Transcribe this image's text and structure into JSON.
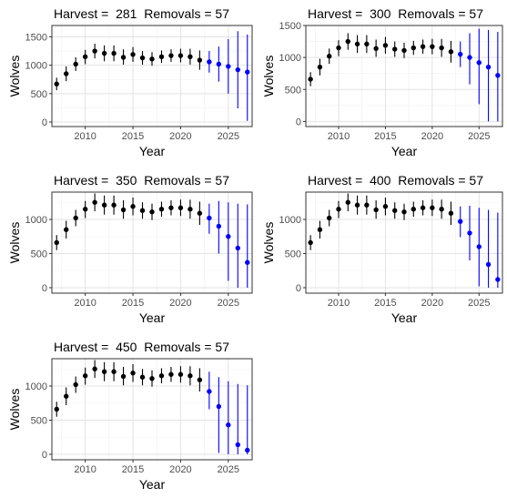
{
  "chart_data": [
    {
      "type": "scatter",
      "title": "Harvest =  281  Removals = 57",
      "xlabel": "Year",
      "ylabel": "Wolves",
      "xlim": [
        2006.5,
        2027.5
      ],
      "ylim": [
        -80,
        1700
      ],
      "xticks": [
        2010,
        2015,
        2020,
        2025
      ],
      "yticks": [
        0,
        500,
        1000,
        1500
      ],
      "grid": true,
      "colors": {
        "observed": "#000000",
        "projected": "#0000ff"
      },
      "x": [
        2007,
        2008,
        2009,
        2010,
        2011,
        2012,
        2013,
        2014,
        2015,
        2016,
        2017,
        2018,
        2019,
        2020,
        2021,
        2022,
        2023,
        2024,
        2025,
        2026,
        2027
      ],
      "y": [
        670,
        850,
        1020,
        1150,
        1250,
        1210,
        1210,
        1140,
        1190,
        1130,
        1110,
        1150,
        1170,
        1170,
        1150,
        1090,
        1060,
        1020,
        980,
        920,
        880
      ],
      "lower": [
        560,
        720,
        900,
        1020,
        1120,
        1070,
        1070,
        1010,
        1060,
        1010,
        990,
        1040,
        1060,
        1050,
        1010,
        920,
        870,
        710,
        500,
        240,
        20
      ],
      "upper": [
        780,
        980,
        1140,
        1270,
        1380,
        1350,
        1350,
        1280,
        1320,
        1250,
        1230,
        1260,
        1280,
        1290,
        1290,
        1260,
        1250,
        1330,
        1460,
        1600,
        1540
      ],
      "projected_from": 2023
    },
    {
      "type": "scatter",
      "title": "Harvest =  300  Removals = 57",
      "xlabel": "Year",
      "ylabel": "Wolves",
      "xlim": [
        2006.5,
        2027.5
      ],
      "ylim": [
        -80,
        1500
      ],
      "xticks": [
        2010,
        2015,
        2020,
        2025
      ],
      "yticks": [
        0,
        500,
        1000,
        1500
      ],
      "grid": true,
      "colors": {
        "observed": "#000000",
        "projected": "#0000ff"
      },
      "x": [
        2007,
        2008,
        2009,
        2010,
        2011,
        2012,
        2013,
        2014,
        2015,
        2016,
        2017,
        2018,
        2019,
        2020,
        2021,
        2022,
        2023,
        2024,
        2025,
        2026,
        2027
      ],
      "y": [
        660,
        850,
        1020,
        1150,
        1250,
        1210,
        1210,
        1140,
        1190,
        1130,
        1110,
        1150,
        1170,
        1170,
        1150,
        1090,
        1050,
        1000,
        920,
        850,
        720
      ],
      "lower": [
        550,
        720,
        900,
        1020,
        1120,
        1070,
        1070,
        1010,
        1060,
        1010,
        990,
        1040,
        1060,
        1050,
        1010,
        920,
        850,
        580,
        270,
        0,
        0
      ],
      "upper": [
        770,
        980,
        1140,
        1270,
        1380,
        1350,
        1350,
        1280,
        1320,
        1250,
        1230,
        1260,
        1280,
        1290,
        1290,
        1260,
        1250,
        1380,
        1450,
        1430,
        1400
      ],
      "projected_from": 2023
    },
    {
      "type": "scatter",
      "title": "Harvest =  350  Removals = 57",
      "xlabel": "Year",
      "ylabel": "Wolves",
      "xlim": [
        2006.5,
        2027.5
      ],
      "ylim": [
        -80,
        1400
      ],
      "xticks": [
        2010,
        2015,
        2020,
        2025
      ],
      "yticks": [
        0,
        500,
        1000
      ],
      "grid": true,
      "colors": {
        "observed": "#000000",
        "projected": "#0000ff"
      },
      "x": [
        2007,
        2008,
        2009,
        2010,
        2011,
        2012,
        2013,
        2014,
        2015,
        2016,
        2017,
        2018,
        2019,
        2020,
        2021,
        2022,
        2023,
        2024,
        2025,
        2026,
        2027
      ],
      "y": [
        660,
        850,
        1020,
        1150,
        1250,
        1210,
        1210,
        1140,
        1190,
        1130,
        1110,
        1150,
        1170,
        1170,
        1150,
        1090,
        1020,
        900,
        750,
        580,
        370
      ],
      "lower": [
        550,
        720,
        900,
        1020,
        1120,
        1070,
        1070,
        1010,
        1060,
        1010,
        990,
        1040,
        1060,
        1050,
        1010,
        920,
        790,
        500,
        100,
        0,
        0
      ],
      "upper": [
        770,
        980,
        1140,
        1270,
        1380,
        1350,
        1350,
        1280,
        1320,
        1250,
        1230,
        1260,
        1280,
        1290,
        1290,
        1260,
        1230,
        1270,
        1250,
        1230,
        1220
      ],
      "projected_from": 2023
    },
    {
      "type": "scatter",
      "title": "Harvest =  400  Removals = 57",
      "xlabel": "Year",
      "ylabel": "Wolves",
      "xlim": [
        2006.5,
        2027.5
      ],
      "ylim": [
        -80,
        1400
      ],
      "xticks": [
        2010,
        2015,
        2020,
        2025
      ],
      "yticks": [
        0,
        500,
        1000
      ],
      "grid": true,
      "colors": {
        "observed": "#000000",
        "projected": "#0000ff"
      },
      "x": [
        2007,
        2008,
        2009,
        2010,
        2011,
        2012,
        2013,
        2014,
        2015,
        2016,
        2017,
        2018,
        2019,
        2020,
        2021,
        2022,
        2023,
        2024,
        2025,
        2026,
        2027
      ],
      "y": [
        660,
        850,
        1020,
        1150,
        1250,
        1210,
        1210,
        1140,
        1190,
        1130,
        1110,
        1150,
        1170,
        1170,
        1150,
        1090,
        970,
        800,
        600,
        340,
        120
      ],
      "lower": [
        550,
        720,
        900,
        1020,
        1120,
        1070,
        1070,
        1010,
        1060,
        1010,
        990,
        1040,
        1060,
        1050,
        1010,
        920,
        740,
        400,
        20,
        0,
        0
      ],
      "upper": [
        770,
        980,
        1140,
        1270,
        1380,
        1350,
        1350,
        1280,
        1320,
        1250,
        1230,
        1260,
        1280,
        1290,
        1290,
        1260,
        1190,
        1200,
        1170,
        1140,
        1100
      ],
      "projected_from": 2023
    },
    {
      "type": "scatter",
      "title": "Harvest =  450  Removals = 57",
      "xlabel": "Year",
      "ylabel": "Wolves",
      "xlim": [
        2006.5,
        2027.5
      ],
      "ylim": [
        -80,
        1400
      ],
      "xticks": [
        2010,
        2015,
        2020,
        2025
      ],
      "yticks": [
        0,
        500,
        1000
      ],
      "grid": true,
      "colors": {
        "observed": "#000000",
        "projected": "#0000ff"
      },
      "x": [
        2007,
        2008,
        2009,
        2010,
        2011,
        2012,
        2013,
        2014,
        2015,
        2016,
        2017,
        2018,
        2019,
        2020,
        2021,
        2022,
        2023,
        2024,
        2025,
        2026,
        2027
      ],
      "y": [
        660,
        850,
        1020,
        1150,
        1250,
        1210,
        1210,
        1140,
        1190,
        1130,
        1110,
        1150,
        1170,
        1170,
        1150,
        1090,
        920,
        700,
        430,
        140,
        60
      ],
      "lower": [
        550,
        720,
        900,
        1020,
        1120,
        1070,
        1070,
        1010,
        1060,
        1010,
        990,
        1040,
        1060,
        1050,
        1010,
        920,
        660,
        20,
        0,
        0,
        0
      ],
      "upper": [
        770,
        980,
        1140,
        1270,
        1380,
        1350,
        1350,
        1280,
        1320,
        1250,
        1230,
        1260,
        1280,
        1290,
        1290,
        1260,
        1210,
        1130,
        1070,
        1030,
        1010
      ],
      "projected_from": 2023
    }
  ]
}
